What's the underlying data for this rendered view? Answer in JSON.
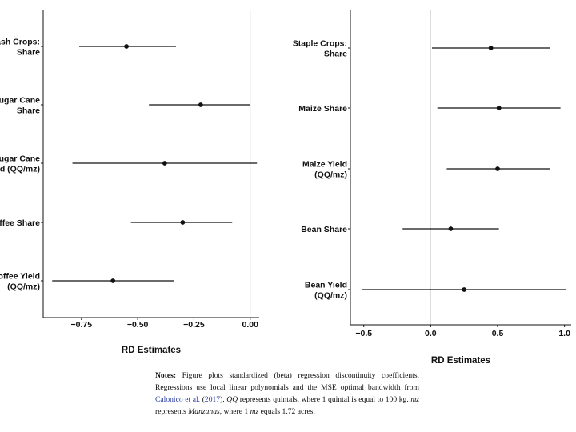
{
  "chart_data": [
    {
      "type": "scatter",
      "subtype": "coefficient-plot",
      "xlabel": "RD Estimates",
      "xlim": [
        -0.92,
        0.04
      ],
      "xticks": [
        "−0.75",
        "−0.50",
        "−0.25",
        "0.00"
      ],
      "xtick_values": [
        -0.75,
        -0.5,
        -0.25,
        0.0
      ],
      "reference_line": 0,
      "categories": [
        [
          "Cash Crops:",
          "Share"
        ],
        [
          "Sugar Cane",
          "Share"
        ],
        [
          "Sugar Cane",
          "Yield (QQ/mz)"
        ],
        [
          "Coffee Share"
        ],
        [
          "Coffee Yield",
          "(QQ/mz)"
        ]
      ],
      "estimates": [
        -0.55,
        -0.22,
        -0.38,
        -0.3,
        -0.61
      ],
      "ci_low": [
        -0.76,
        -0.45,
        -0.79,
        -0.53,
        -0.88
      ],
      "ci_high": [
        -0.33,
        0.0,
        0.03,
        -0.08,
        -0.34
      ]
    },
    {
      "type": "scatter",
      "subtype": "coefficient-plot",
      "xlabel": "RD Estimates",
      "xlim": [
        -0.6,
        1.05
      ],
      "xticks": [
        "−0.5",
        "0.0",
        "0.5",
        "1.0"
      ],
      "xtick_values": [
        -0.5,
        0.0,
        0.5,
        1.0
      ],
      "reference_line": 0,
      "categories": [
        [
          "Staple Crops:",
          "Share"
        ],
        [
          "Maize Share"
        ],
        [
          "Maize Yield",
          "(QQ/mz)"
        ],
        [
          "Bean Share"
        ],
        [
          "Bean Yield",
          "(QQ/mz)"
        ]
      ],
      "estimates": [
        0.45,
        0.51,
        0.5,
        0.15,
        0.25
      ],
      "ci_low": [
        0.01,
        0.05,
        0.12,
        -0.21,
        -0.51
      ],
      "ci_high": [
        0.89,
        0.97,
        0.89,
        0.51,
        1.01
      ]
    }
  ],
  "notes": {
    "label": "Notes:",
    "text1": "Figure plots standardized (beta) regression discontinuity coefficients. Regressions use local linear polynomials and the MSE optimal bandwidth from ",
    "cite": "Calonico et al.",
    "year": "2017",
    "text2": ". ",
    "qq": "QQ",
    "text3": " represents quintals, where 1 quintal is equal to 100 kg. ",
    "mz": "mz",
    "text4": " represents ",
    "manzanas": "Manzanas",
    "text5": ", where 1 ",
    "mz2": "mz",
    "text6": " equals 1.72 acres."
  }
}
